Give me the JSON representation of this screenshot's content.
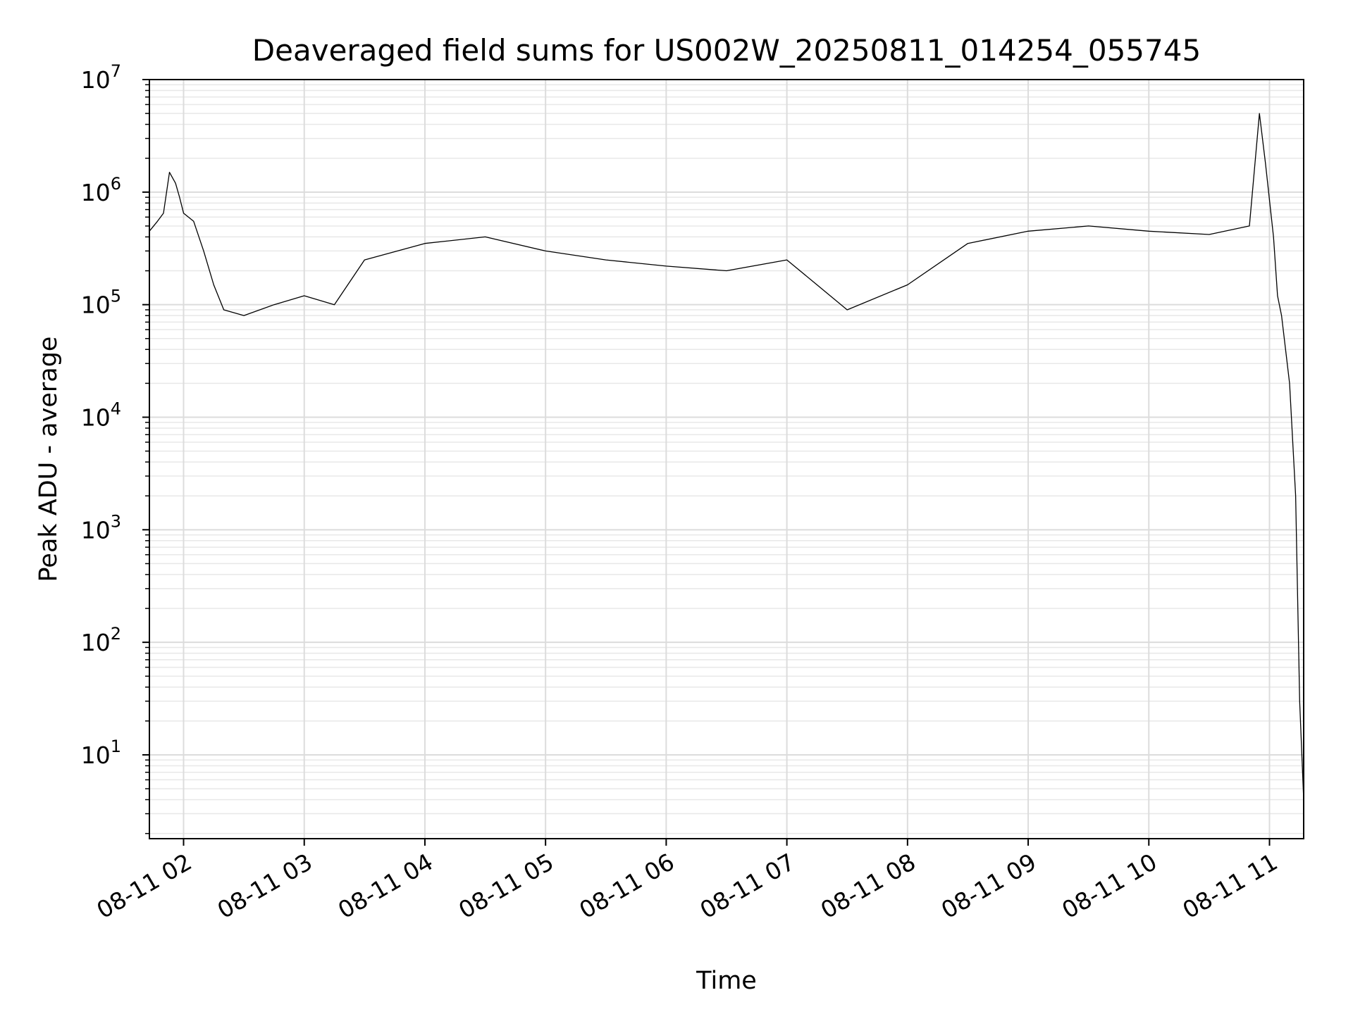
{
  "chart_data": {
    "type": "line",
    "title": "Deaveraged field sums for US002W_20250811_014254_055745",
    "xlabel": "Time",
    "ylabel": "Peak ADU - average",
    "yscale": "log",
    "ylim": [
      1.8,
      10000000
    ],
    "xlim": [
      "2025-08-11 01:43",
      "2025-08-11 11:17"
    ],
    "grid": true,
    "grid_minor": true,
    "line_color": "#000000",
    "x_ticks": [
      {
        "value": "2025-08-11 02:00",
        "label": "08-11 02"
      },
      {
        "value": "2025-08-11 03:00",
        "label": "08-11 03"
      },
      {
        "value": "2025-08-11 04:00",
        "label": "08-11 04"
      },
      {
        "value": "2025-08-11 05:00",
        "label": "08-11 05"
      },
      {
        "value": "2025-08-11 06:00",
        "label": "08-11 06"
      },
      {
        "value": "2025-08-11 07:00",
        "label": "08-11 07"
      },
      {
        "value": "2025-08-11 08:00",
        "label": "08-11 08"
      },
      {
        "value": "2025-08-11 09:00",
        "label": "08-11 09"
      },
      {
        "value": "2025-08-11 10:00",
        "label": "08-11 10"
      },
      {
        "value": "2025-08-11 11:00",
        "label": "08-11 11"
      }
    ],
    "y_ticks": [
      {
        "value": 10,
        "base": "10",
        "exp": "1"
      },
      {
        "value": 100,
        "base": "10",
        "exp": "2"
      },
      {
        "value": 1000,
        "base": "10",
        "exp": "3"
      },
      {
        "value": 10000,
        "base": "10",
        "exp": "4"
      },
      {
        "value": 100000,
        "base": "10",
        "exp": "5"
      },
      {
        "value": 1000000,
        "base": "10",
        "exp": "6"
      },
      {
        "value": 10000000,
        "base": "10",
        "exp": "7"
      }
    ],
    "series": [
      {
        "points": [
          [
            "2025-08-11 01:43",
            450000
          ],
          [
            "2025-08-11 01:47",
            550000
          ],
          [
            "2025-08-11 01:50",
            650000
          ],
          [
            "2025-08-11 01:53",
            1500000
          ],
          [
            "2025-08-11 01:56",
            1200000
          ],
          [
            "2025-08-11 01:58",
            900000
          ],
          [
            "2025-08-11 02:00",
            650000
          ],
          [
            "2025-08-11 02:05",
            550000
          ],
          [
            "2025-08-11 02:10",
            300000
          ],
          [
            "2025-08-11 02:15",
            150000
          ],
          [
            "2025-08-11 02:20",
            90000
          ],
          [
            "2025-08-11 02:30",
            80000
          ],
          [
            "2025-08-11 02:45",
            100000
          ],
          [
            "2025-08-11 03:00",
            120000
          ],
          [
            "2025-08-11 03:15",
            100000
          ],
          [
            "2025-08-11 03:30",
            250000
          ],
          [
            "2025-08-11 04:00",
            350000
          ],
          [
            "2025-08-11 04:30",
            400000
          ],
          [
            "2025-08-11 05:00",
            300000
          ],
          [
            "2025-08-11 05:30",
            250000
          ],
          [
            "2025-08-11 06:00",
            220000
          ],
          [
            "2025-08-11 06:30",
            200000
          ],
          [
            "2025-08-11 07:00",
            250000
          ],
          [
            "2025-08-11 07:15",
            150000
          ],
          [
            "2025-08-11 07:30",
            90000
          ],
          [
            "2025-08-11 08:00",
            150000
          ],
          [
            "2025-08-11 08:30",
            350000
          ],
          [
            "2025-08-11 09:00",
            450000
          ],
          [
            "2025-08-11 09:30",
            500000
          ],
          [
            "2025-08-11 10:00",
            450000
          ],
          [
            "2025-08-11 10:30",
            420000
          ],
          [
            "2025-08-11 10:50",
            500000
          ],
          [
            "2025-08-11 10:55",
            5000000
          ],
          [
            "2025-08-11 10:58",
            1800000
          ],
          [
            "2025-08-11 11:02",
            400000
          ],
          [
            "2025-08-11 11:04",
            120000
          ],
          [
            "2025-08-11 11:06",
            80000
          ],
          [
            "2025-08-11 11:10",
            20000
          ],
          [
            "2025-08-11 11:13",
            2000
          ],
          [
            "2025-08-11 11:15",
            30
          ],
          [
            "2025-08-11 11:17",
            4
          ]
        ]
      }
    ]
  }
}
